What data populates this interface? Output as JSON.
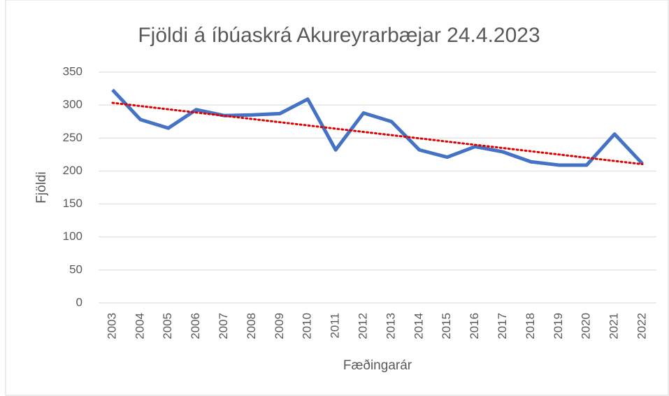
{
  "chart_data": {
    "type": "line",
    "title": "Fjöldi á íbúaskrá Akureyrarbæjar 24.4.2023",
    "x_label": "Fæðingarár",
    "y_label": "Fjöldi",
    "categories": [
      "2003",
      "2004",
      "2005",
      "2006",
      "2007",
      "2008",
      "2009",
      "2010",
      "2011",
      "2012",
      "2013",
      "2014",
      "2015",
      "2016",
      "2017",
      "2018",
      "2019",
      "2020",
      "2021",
      "2022"
    ],
    "series": [
      {
        "name": "Fjöldi",
        "color": "#4472c4",
        "values": [
          323,
          278,
          265,
          293,
          284,
          285,
          287,
          309,
          232,
          288,
          275,
          232,
          221,
          237,
          229,
          214,
          209,
          209,
          256,
          211
        ]
      }
    ],
    "trendline": {
      "type": "linear",
      "color": "#e00000"
    },
    "ylim": [
      0,
      350
    ],
    "yticks": [
      0,
      50,
      100,
      150,
      200,
      250,
      300,
      350
    ],
    "grid": true
  }
}
